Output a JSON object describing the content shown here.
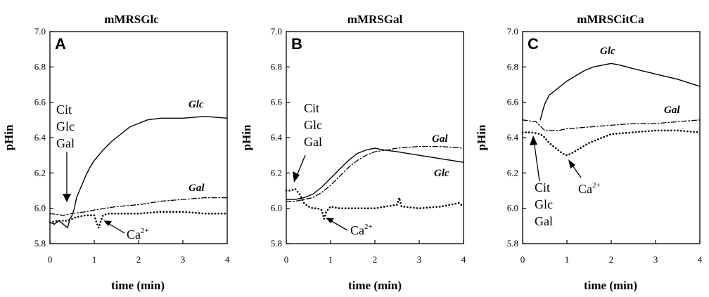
{
  "chart_data": [
    {
      "type": "line",
      "title": "mMRSGlc",
      "panel_letter": "A",
      "xlabel": "time (min)",
      "ylabel": "pHin",
      "xlim": [
        0,
        4
      ],
      "ylim": [
        5.8,
        7.0
      ],
      "x_ticks": [
        "0",
        "1",
        "2",
        "3",
        "4"
      ],
      "y_ticks": [
        "5.8",
        "6.0",
        "6.2",
        "6.4",
        "6.6",
        "6.8",
        "7.0"
      ],
      "grid": false,
      "series": [
        {
          "name": "Glc",
          "style": "solid",
          "x": [
            0,
            0.1,
            0.2,
            0.3,
            0.35,
            0.4,
            0.45,
            0.5,
            0.55,
            0.6,
            0.7,
            0.8,
            0.9,
            1.0,
            1.2,
            1.4,
            1.6,
            1.8,
            2.0,
            2.2,
            2.5,
            3.0,
            3.5,
            4.0
          ],
          "y": [
            5.92,
            5.91,
            5.93,
            5.91,
            5.9,
            5.89,
            5.94,
            5.96,
            6.0,
            6.06,
            6.12,
            6.18,
            6.23,
            6.27,
            6.33,
            6.38,
            6.42,
            6.46,
            6.48,
            6.5,
            6.51,
            6.51,
            6.52,
            6.51
          ]
        },
        {
          "name": "Gal",
          "style": "dashdot",
          "x": [
            0,
            0.3,
            0.5,
            0.8,
            1.0,
            1.5,
            2.0,
            2.5,
            3.0,
            3.5,
            4.0
          ],
          "y": [
            5.97,
            5.96,
            5.97,
            5.98,
            5.99,
            6.01,
            6.02,
            6.04,
            6.05,
            6.06,
            6.06
          ]
        },
        {
          "name": "Ca2+",
          "style": "dotted",
          "x": [
            0,
            0.2,
            0.4,
            0.6,
            0.8,
            1.0,
            1.05,
            1.1,
            1.15,
            1.2,
            1.3,
            1.5,
            2.0,
            2.5,
            3.0,
            3.5,
            4.0
          ],
          "y": [
            5.92,
            5.93,
            5.93,
            5.95,
            5.96,
            5.96,
            5.92,
            5.89,
            5.93,
            5.96,
            5.97,
            5.97,
            5.97,
            5.98,
            5.98,
            5.97,
            5.97
          ]
        }
      ],
      "labels": {
        "glc": "Glc",
        "gal": "Gal",
        "cit": "Cit",
        "glc_added": "Glc",
        "gal_added": "Gal",
        "ca": "Ca",
        "ca_sup": "2+"
      }
    },
    {
      "type": "line",
      "title": "mMRSGal",
      "panel_letter": "B",
      "xlabel": "time (min)",
      "ylabel": "pHin",
      "xlim": [
        0,
        4
      ],
      "ylim": [
        5.8,
        7.0
      ],
      "x_ticks": [
        "0",
        "1",
        "2",
        "3",
        "4"
      ],
      "y_ticks": [
        "5.8",
        "6.0",
        "6.2",
        "6.4",
        "6.6",
        "6.8",
        "7.0"
      ],
      "grid": false,
      "series": [
        {
          "name": "Glc",
          "style": "solid",
          "x": [
            0,
            0.2,
            0.4,
            0.6,
            0.8,
            1.0,
            1.2,
            1.4,
            1.6,
            1.8,
            2.0,
            2.2,
            2.5,
            3.0,
            3.5,
            4.0
          ],
          "y": [
            6.05,
            6.05,
            6.06,
            6.08,
            6.12,
            6.17,
            6.22,
            6.27,
            6.31,
            6.33,
            6.34,
            6.33,
            6.32,
            6.3,
            6.28,
            6.26
          ]
        },
        {
          "name": "Gal",
          "style": "dashdot",
          "x": [
            0,
            0.2,
            0.4,
            0.6,
            0.8,
            1.0,
            1.2,
            1.4,
            1.6,
            1.8,
            2.0,
            2.5,
            3.0,
            3.5,
            4.0
          ],
          "y": [
            6.04,
            6.04,
            6.05,
            6.06,
            6.09,
            6.13,
            6.18,
            6.23,
            6.27,
            6.3,
            6.32,
            6.34,
            6.35,
            6.35,
            6.34
          ]
        },
        {
          "name": "Ca2+",
          "style": "dotted",
          "x": [
            0,
            0.1,
            0.2,
            0.3,
            0.4,
            0.5,
            0.6,
            0.7,
            0.8,
            0.85,
            0.9,
            1.0,
            1.2,
            1.5,
            2.0,
            2.5,
            2.55,
            2.6,
            3.0,
            3.5,
            3.9,
            4.0
          ],
          "y": [
            6.1,
            6.1,
            6.11,
            6.08,
            6.03,
            6.01,
            6.0,
            6.0,
            5.99,
            5.94,
            5.98,
            6.01,
            6.0,
            6.0,
            6.0,
            6.02,
            6.06,
            6.01,
            6.0,
            6.01,
            6.03,
            6.01
          ]
        }
      ],
      "labels": {
        "glc": "Glc",
        "gal": "Gal",
        "cit": "Cit",
        "glc_added": "Glc",
        "gal_added": "Gal",
        "ca": "Ca",
        "ca_sup": "2+"
      }
    },
    {
      "type": "line",
      "title": "mMRSCitCa",
      "panel_letter": "C",
      "xlabel": "time (min)",
      "ylabel": "pHin",
      "xlim": [
        0,
        4
      ],
      "ylim": [
        5.8,
        7.0
      ],
      "x_ticks": [
        "0",
        "1",
        "2",
        "3",
        "4"
      ],
      "y_ticks": [
        "5.8",
        "6.0",
        "6.2",
        "6.4",
        "6.6",
        "6.8",
        "7.0"
      ],
      "grid": false,
      "series": [
        {
          "name": "Glc",
          "style": "solid",
          "x": [
            0.4,
            0.45,
            0.5,
            0.6,
            0.8,
            1.0,
            1.2,
            1.4,
            1.6,
            1.8,
            2.0,
            2.2,
            2.5,
            3.0,
            3.5,
            4.0
          ],
          "y": [
            6.5,
            6.55,
            6.59,
            6.64,
            6.68,
            6.72,
            6.75,
            6.78,
            6.8,
            6.81,
            6.82,
            6.81,
            6.79,
            6.76,
            6.73,
            6.69
          ]
        },
        {
          "name": "Gal",
          "style": "dashdot",
          "x": [
            0,
            0.3,
            0.5,
            0.8,
            1.0,
            1.5,
            2.0,
            2.5,
            3.0,
            3.5,
            4.0
          ],
          "y": [
            6.5,
            6.49,
            6.44,
            6.44,
            6.45,
            6.46,
            6.47,
            6.48,
            6.48,
            6.49,
            6.5
          ]
        },
        {
          "name": "Ca2+",
          "style": "dotted",
          "x": [
            0,
            0.2,
            0.4,
            0.5,
            0.6,
            0.7,
            0.8,
            0.9,
            1.0,
            1.1,
            1.3,
            1.5,
            2.0,
            2.5,
            3.0,
            3.5,
            4.0
          ],
          "y": [
            6.43,
            6.43,
            6.42,
            6.4,
            6.37,
            6.35,
            6.33,
            6.31,
            6.3,
            6.31,
            6.34,
            6.37,
            6.42,
            6.43,
            6.44,
            6.44,
            6.43
          ]
        }
      ],
      "labels": {
        "glc": "Glc",
        "gal": "Gal",
        "cit": "Cit",
        "glc_added": "Glc",
        "gal_added": "Gal",
        "ca": "Ca",
        "ca_sup": "2+"
      }
    }
  ]
}
